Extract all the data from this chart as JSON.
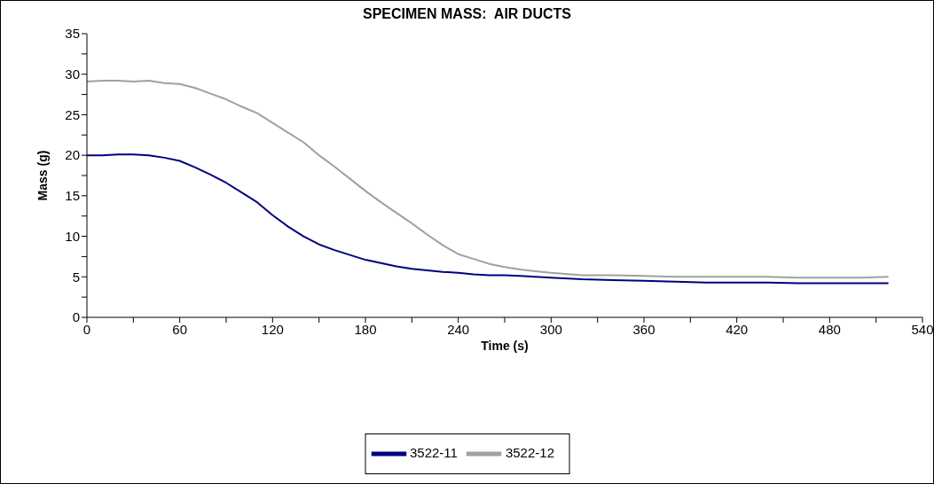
{
  "chart_data": {
    "type": "line",
    "title": "SPECIMEN MASS:  AIR DUCTS",
    "xlabel": "Time (s)",
    "ylabel": "Mass (g)",
    "x": [
      0,
      10,
      20,
      30,
      40,
      50,
      60,
      70,
      80,
      90,
      100,
      110,
      120,
      130,
      140,
      150,
      160,
      170,
      180,
      190,
      200,
      210,
      220,
      230,
      240,
      250,
      260,
      270,
      280,
      290,
      300,
      320,
      340,
      360,
      380,
      400,
      420,
      440,
      460,
      480,
      500,
      518
    ],
    "series": [
      {
        "name": "3522-11",
        "color": "#000080",
        "values": [
          20.0,
          20.0,
          20.1,
          20.1,
          20.0,
          19.7,
          19.3,
          18.5,
          17.6,
          16.6,
          15.4,
          14.2,
          12.6,
          11.2,
          10.0,
          9.0,
          8.3,
          7.7,
          7.1,
          6.7,
          6.3,
          6.0,
          5.8,
          5.6,
          5.5,
          5.3,
          5.2,
          5.2,
          5.1,
          5.0,
          4.9,
          4.7,
          4.6,
          4.5,
          4.4,
          4.3,
          4.3,
          4.3,
          4.2,
          4.2,
          4.2,
          4.2
        ]
      },
      {
        "name": "3522-12",
        "color": "#a0a0a0",
        "values": [
          29.1,
          29.2,
          29.2,
          29.1,
          29.2,
          28.9,
          28.8,
          28.3,
          27.6,
          26.9,
          26.0,
          25.2,
          24.0,
          22.8,
          21.6,
          20.0,
          18.6,
          17.1,
          15.6,
          14.2,
          12.9,
          11.6,
          10.2,
          8.9,
          7.8,
          7.2,
          6.6,
          6.2,
          5.9,
          5.7,
          5.5,
          5.2,
          5.2,
          5.1,
          5.0,
          5.0,
          5.0,
          5.0,
          4.9,
          4.9,
          4.9,
          5.0
        ]
      }
    ],
    "xlim": [
      0,
      540
    ],
    "xticks": [
      0,
      {
        "value": 30,
        "label": null
      },
      60,
      {
        "value": 90,
        "label": null
      },
      120,
      {
        "value": 150,
        "label": null
      },
      180,
      {
        "value": 210,
        "label": null
      },
      240,
      {
        "value": 270,
        "label": null
      },
      300,
      {
        "value": 330,
        "label": null
      },
      360,
      {
        "value": 390,
        "label": null
      },
      420,
      {
        "value": 450,
        "label": null
      },
      480,
      {
        "value": 510,
        "label": null
      },
      540
    ],
    "ylim": [
      0,
      35
    ],
    "yticks": [
      0,
      {
        "value": 2.5,
        "label": null
      },
      5,
      {
        "value": 7.5,
        "label": null
      },
      10,
      {
        "value": 12.5,
        "label": null
      },
      15,
      {
        "value": 17.5,
        "label": null
      },
      20,
      {
        "value": 22.5,
        "label": null
      },
      25,
      {
        "value": 27.5,
        "label": null
      },
      30,
      {
        "value": 32.5,
        "label": null
      },
      35
    ],
    "grid": false,
    "legend": "bottom",
    "marker": "none",
    "line_style": "solid"
  }
}
